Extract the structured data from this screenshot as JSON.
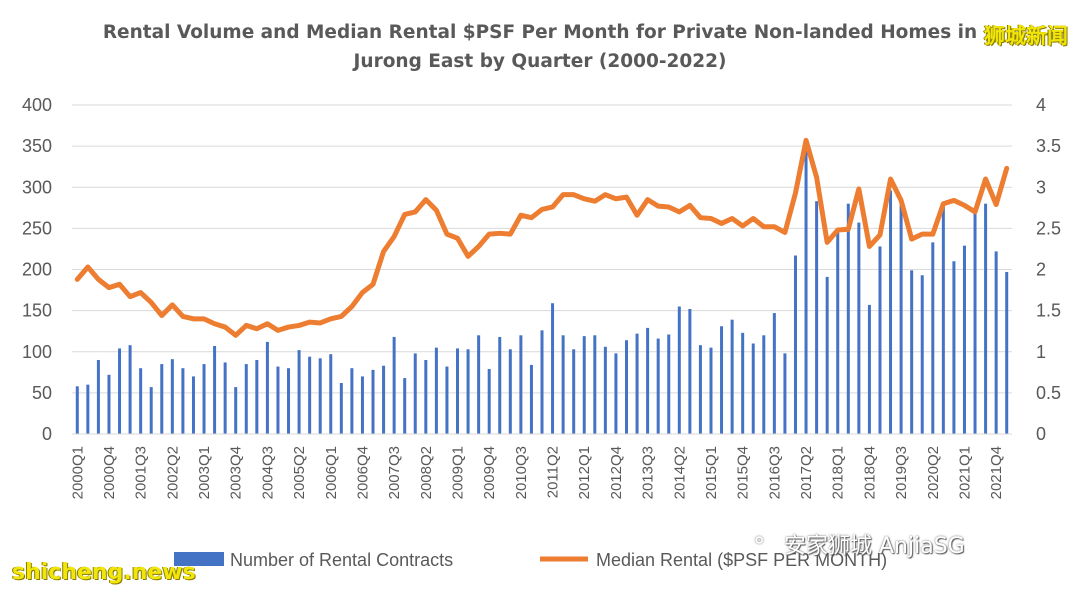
{
  "watermarks": {
    "top_right": "狮城新闻",
    "bottom_left": "shicheng.news",
    "bottom_right": "安家狮城 AnjiaSG"
  },
  "chart_data": {
    "type": "bar+line",
    "title_line1": "Rental Volume and Median Rental $PSF Per Month for Private Non-landed Homes in",
    "title_line2": "Jurong East by Quarter (2000-2022)",
    "y_left": {
      "min": 0,
      "max": 400,
      "ticks": [
        0,
        50,
        100,
        150,
        200,
        250,
        300,
        350,
        400
      ]
    },
    "y_right": {
      "min": 0,
      "max": 4,
      "ticks": [
        "0",
        "0.5",
        "1",
        "1.5",
        "2",
        "2.5",
        "3",
        "3.5",
        "4"
      ]
    },
    "x_tick_labels": [
      "2000Q1",
      "2000Q4",
      "2001Q3",
      "2002Q2",
      "2003Q1",
      "2003Q4",
      "2004Q3",
      "2005Q2",
      "2006Q1",
      "2006Q4",
      "2007Q3",
      "2008Q2",
      "2009Q1",
      "2009Q4",
      "2010Q3",
      "2011Q2",
      "2012Q1",
      "2012Q4",
      "2013Q3",
      "2014Q2",
      "2015Q1",
      "2015Q4",
      "2016Q3",
      "2017Q2",
      "2018Q1",
      "2018Q4",
      "2019Q3",
      "2020Q2",
      "2021Q1",
      "2021Q4"
    ],
    "grid": true,
    "legend_position": "bottom",
    "colors": {
      "bar": "#4472c4",
      "line": "#ed7d31",
      "grid": "#d9d9d9"
    },
    "series": [
      {
        "name": "Number of Rental Contracts",
        "kind": "bar",
        "axis": "left",
        "values": [
          58,
          60,
          90,
          72,
          104,
          108,
          80,
          57,
          85,
          91,
          80,
          70,
          85,
          107,
          87,
          57,
          85,
          90,
          112,
          82,
          80,
          102,
          94,
          92,
          97,
          62,
          80,
          70,
          78,
          83,
          118,
          68,
          98,
          90,
          105,
          82,
          104,
          103,
          120,
          79,
          118,
          103,
          120,
          84,
          126,
          159,
          120,
          103,
          119,
          120,
          106,
          98,
          114,
          122,
          129,
          116,
          121,
          155,
          152,
          108,
          105,
          131,
          139,
          123,
          110,
          120,
          147,
          98,
          217,
          345,
          283,
          191,
          246,
          280,
          257,
          157,
          228,
          296,
          283,
          199,
          193,
          233,
          278,
          210,
          229,
          268,
          280,
          222,
          197
        ]
      },
      {
        "name": "Median Rental ($PSF PER MONTH)",
        "kind": "line",
        "axis": "right",
        "values": [
          1.88,
          2.03,
          1.88,
          1.78,
          1.82,
          1.67,
          1.72,
          1.6,
          1.44,
          1.57,
          1.43,
          1.4,
          1.4,
          1.34,
          1.3,
          1.2,
          1.32,
          1.28,
          1.34,
          1.26,
          1.3,
          1.32,
          1.36,
          1.35,
          1.4,
          1.43,
          1.55,
          1.72,
          1.82,
          2.22,
          2.4,
          2.67,
          2.7,
          2.85,
          2.72,
          2.43,
          2.38,
          2.16,
          2.28,
          2.43,
          2.44,
          2.43,
          2.66,
          2.63,
          2.73,
          2.76,
          2.91,
          2.91,
          2.86,
          2.83,
          2.91,
          2.86,
          2.88,
          2.66,
          2.85,
          2.77,
          2.76,
          2.7,
          2.78,
          2.63,
          2.62,
          2.56,
          2.62,
          2.53,
          2.62,
          2.52,
          2.52,
          2.45,
          2.93,
          3.57,
          3.12,
          2.33,
          2.48,
          2.49,
          2.98,
          2.28,
          2.42,
          3.1,
          2.84,
          2.37,
          2.43,
          2.43,
          2.8,
          2.84,
          2.78,
          2.7,
          3.1,
          2.79,
          3.23
        ]
      }
    ]
  }
}
